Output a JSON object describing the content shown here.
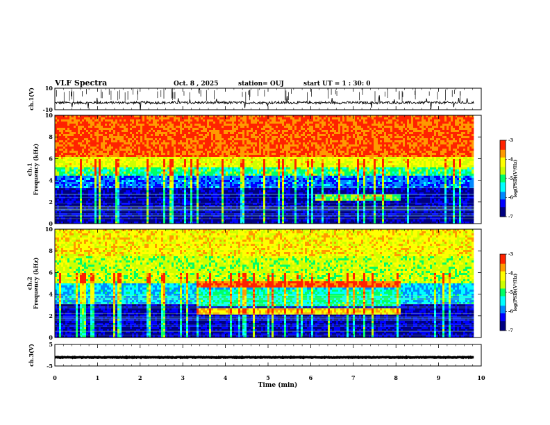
{
  "header": {
    "title": "VLF Spectra",
    "date": "Oct. 8 , 2025",
    "station": "station= OUJ",
    "start": "start UT =  1 : 30: 0"
  },
  "chart_data": [
    {
      "type": "line",
      "name": "ch1-waveform",
      "ylabel": "ch.1(V)",
      "ylim": [
        -10,
        10
      ],
      "yticks": [
        {
          "v": 10,
          "label": "10"
        },
        {
          "v": -10,
          "label": "-10"
        }
      ],
      "baseline": -3.5,
      "noise_amplitude": 1.2,
      "xlim": [
        0,
        10
      ],
      "data_end": 9.83
    },
    {
      "type": "heatmap",
      "name": "ch1-spectrogram",
      "ylabel": "ch.1\nFrequency (kHz)",
      "ylim": [
        0,
        10
      ],
      "yticks": [
        0,
        2,
        4,
        6,
        8,
        10
      ],
      "xlim": [
        0,
        10
      ],
      "data_end": 9.83,
      "bands": [
        {
          "fmin": 0.0,
          "fmax": 3.2,
          "level": 0.08
        },
        {
          "fmin": 3.2,
          "fmax": 4.4,
          "level": 0.25
        },
        {
          "fmin": 4.4,
          "fmax": 5.2,
          "level": 0.5
        },
        {
          "fmin": 5.2,
          "fmax": 6.2,
          "level": 0.68
        },
        {
          "fmin": 6.2,
          "fmax": 10.0,
          "level": 0.9
        }
      ],
      "features": [
        {
          "t0": 6.1,
          "t1": 8.1,
          "fmin": 2.1,
          "fmax": 2.6,
          "level": 0.55
        }
      ]
    },
    {
      "type": "heatmap",
      "name": "ch2-spectrogram",
      "ylabel": "ch.2\nFrequency (kHz)",
      "ylim": [
        0,
        10
      ],
      "yticks": [
        0,
        2,
        4,
        6,
        8,
        10
      ],
      "xlim": [
        0,
        10
      ],
      "data_end": 9.83,
      "bands": [
        {
          "fmin": 0.0,
          "fmax": 3.0,
          "level": 0.1
        },
        {
          "fmin": 3.0,
          "fmax": 5.0,
          "level": 0.35
        },
        {
          "fmin": 5.0,
          "fmax": 7.5,
          "level": 0.62
        },
        {
          "fmin": 7.5,
          "fmax": 10.0,
          "level": 0.72
        }
      ],
      "features": [
        {
          "t0": 3.3,
          "t1": 8.1,
          "fmin": 4.6,
          "fmax": 5.2,
          "level": 0.9
        },
        {
          "t0": 3.3,
          "t1": 8.1,
          "fmin": 2.1,
          "fmax": 2.6,
          "level": 0.75
        },
        {
          "t0": 3.3,
          "t1": 8.1,
          "fmin": 2.8,
          "fmax": 4.4,
          "level": 0.45
        }
      ]
    },
    {
      "type": "line",
      "name": "ch3-waveform",
      "ylabel": "ch.3(V)",
      "ylim": [
        -5,
        5
      ],
      "yticks": [
        {
          "v": 5,
          "label": "5"
        },
        {
          "v": -5,
          "label": "-5"
        }
      ],
      "baseline": -1.0,
      "noise_amplitude": 0.15,
      "xlim": [
        0,
        10
      ],
      "data_end": 9.83
    }
  ],
  "xaxis": {
    "label": "Time (min)",
    "ticks": [
      "0",
      "1",
      "2",
      "3",
      "4",
      "5",
      "6",
      "7",
      "8",
      "9",
      "10"
    ]
  },
  "colorbar": {
    "label": "log(PSD)(V²/Hz)",
    "range": [
      -7,
      -3
    ],
    "ticks": [
      "-3",
      "-4",
      "-5",
      "-6",
      "-7"
    ],
    "colors": [
      "#000080",
      "#0000ff",
      "#0088ff",
      "#00ffff",
      "#00ff66",
      "#ccff00",
      "#ffff00",
      "#ff9900",
      "#ff2200",
      "#ffffff"
    ]
  }
}
